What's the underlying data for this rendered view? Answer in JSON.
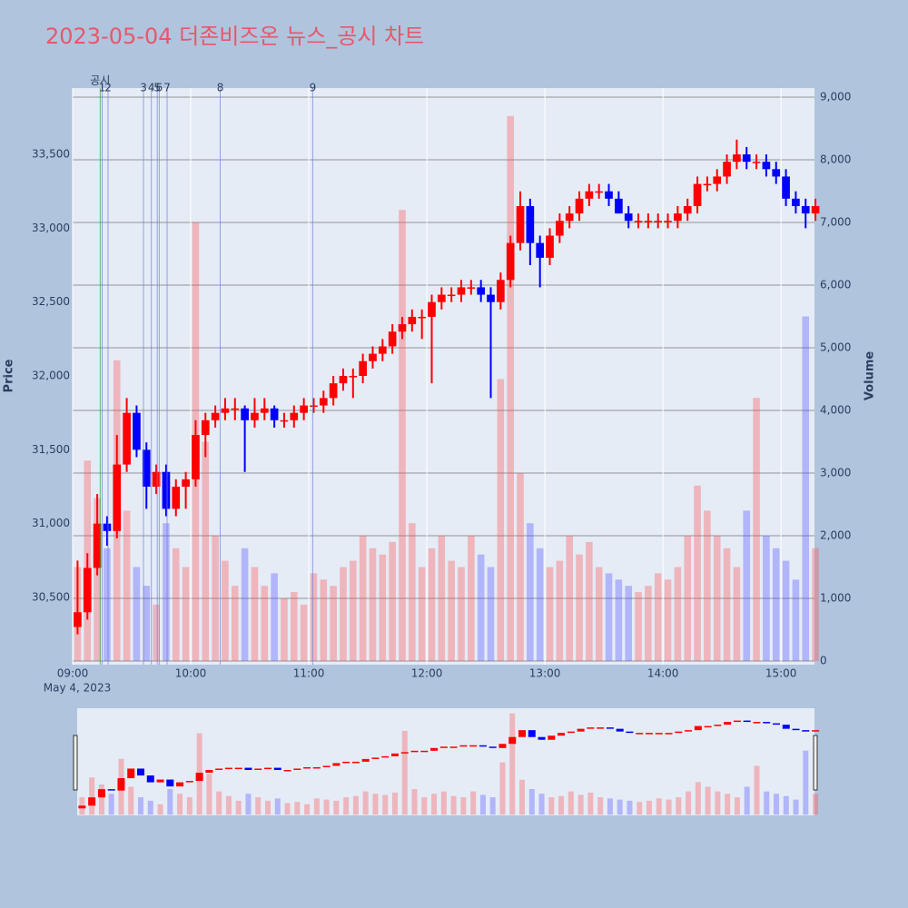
{
  "chart_data": {
    "type": "candlestick",
    "title": "2023-05-04 더존비즈온 뉴스_공시 차트",
    "y_label": "Price",
    "y2_label": "Volume",
    "x_date_label": "May 4, 2023",
    "up_color": "#ff0000",
    "down_color": "#0000ff",
    "volume_up_color": "rgba(255,80,80,0.35)",
    "volume_down_color": "rgba(80,80,255,0.35)",
    "x": [
      "09:00",
      "09:05",
      "09:10",
      "09:15",
      "09:20",
      "09:25",
      "09:30",
      "09:35",
      "09:40",
      "09:45",
      "09:50",
      "09:55",
      "10:00",
      "10:05",
      "10:10",
      "10:15",
      "10:20",
      "10:25",
      "10:30",
      "10:35",
      "10:40",
      "10:45",
      "10:50",
      "10:55",
      "11:00",
      "11:05",
      "11:10",
      "11:15",
      "11:20",
      "11:25",
      "11:30",
      "11:35",
      "11:40",
      "11:45",
      "11:50",
      "11:55",
      "12:00",
      "12:05",
      "12:10",
      "12:15",
      "12:20",
      "12:25",
      "12:30",
      "12:35",
      "12:40",
      "12:45",
      "12:50",
      "12:55",
      "13:00",
      "13:05",
      "13:10",
      "13:15",
      "13:20",
      "13:25",
      "13:30",
      "13:35",
      "13:40",
      "13:45",
      "13:50",
      "13:55",
      "14:00",
      "14:05",
      "14:10",
      "14:15",
      "14:20",
      "14:25",
      "14:30",
      "14:35",
      "14:40",
      "14:45",
      "14:50",
      "14:55",
      "15:00",
      "15:05",
      "15:10",
      "15:15"
    ],
    "open": [
      30300,
      30400,
      30700,
      31000,
      30950,
      31400,
      31750,
      31500,
      31250,
      31350,
      31100,
      31250,
      31300,
      31600,
      31700,
      31750,
      31780,
      31780,
      31700,
      31750,
      31780,
      31700,
      31700,
      31750,
      31800,
      31800,
      31850,
      31950,
      32000,
      32000,
      32100,
      32150,
      32200,
      32300,
      32350,
      32400,
      32400,
      32500,
      32550,
      32550,
      32600,
      32600,
      32550,
      32500,
      32650,
      32900,
      33150,
      32900,
      32800,
      32950,
      33050,
      33100,
      33200,
      33250,
      33250,
      33200,
      33100,
      33050,
      33050,
      33050,
      33050,
      33050,
      33100,
      33150,
      33300,
      33300,
      33350,
      33450,
      33500,
      33450,
      33450,
      33400,
      33350,
      33200,
      33150,
      33100
    ],
    "high": [
      30750,
      30800,
      31200,
      31050,
      31600,
      31850,
      31800,
      31550,
      31400,
      31400,
      31300,
      31350,
      31700,
      31750,
      31800,
      31850,
      31850,
      31800,
      31850,
      31850,
      31800,
      31750,
      31800,
      31850,
      31850,
      31900,
      32000,
      32050,
      32050,
      32150,
      32200,
      32250,
      32350,
      32400,
      32450,
      32450,
      32550,
      32600,
      32600,
      32650,
      32650,
      32650,
      32600,
      32700,
      32950,
      33250,
      33200,
      32950,
      33000,
      33100,
      33150,
      33250,
      33300,
      33300,
      33300,
      33250,
      33150,
      33100,
      33100,
      33100,
      33100,
      33150,
      33200,
      33350,
      33350,
      33400,
      33500,
      33600,
      33550,
      33500,
      33500,
      33450,
      33400,
      33250,
      33200,
      33200
    ],
    "low": [
      30250,
      30350,
      30650,
      30850,
      30900,
      31350,
      31450,
      31100,
      31200,
      31050,
      31050,
      31100,
      31250,
      31450,
      31650,
      31700,
      31700,
      31350,
      31650,
      31700,
      31650,
      31650,
      31650,
      31700,
      31750,
      31750,
      31800,
      31900,
      31850,
      31950,
      32050,
      32100,
      32150,
      32250,
      32300,
      32250,
      31950,
      32450,
      32500,
      32500,
      32550,
      32500,
      31850,
      32450,
      32600,
      32850,
      32750,
      32600,
      32750,
      32900,
      33000,
      33050,
      33150,
      33200,
      33150,
      33100,
      33000,
      33000,
      33000,
      33000,
      33000,
      33000,
      33050,
      33100,
      33250,
      33250,
      33300,
      33400,
      33400,
      33400,
      33350,
      33300,
      33150,
      33100,
      33000,
      33050
    ],
    "close": [
      30400,
      30700,
      31000,
      30950,
      31400,
      31750,
      31500,
      31250,
      31350,
      31100,
      31250,
      31300,
      31600,
      31700,
      31750,
      31780,
      31780,
      31700,
      31750,
      31780,
      31700,
      31700,
      31750,
      31800,
      31800,
      31850,
      31950,
      32000,
      32000,
      32100,
      32150,
      32200,
      32300,
      32350,
      32400,
      32400,
      32500,
      32550,
      32550,
      32600,
      32600,
      32550,
      32500,
      32650,
      32900,
      33150,
      32900,
      32800,
      32950,
      33050,
      33100,
      33200,
      33250,
      33250,
      33200,
      33100,
      33050,
      33050,
      33050,
      33050,
      33050,
      33100,
      33150,
      33300,
      33300,
      33350,
      33450,
      33500,
      33450,
      33450,
      33400,
      33350,
      33200,
      33150,
      33100,
      33150
    ],
    "volume": [
      1500,
      3200,
      2600,
      1800,
      4800,
      2400,
      1500,
      1200,
      900,
      2200,
      1800,
      1500,
      7000,
      3500,
      2000,
      1600,
      1200,
      1800,
      1500,
      1200,
      1400,
      1000,
      1100,
      900,
      1400,
      1300,
      1200,
      1500,
      1600,
      2000,
      1800,
      1700,
      1900,
      7200,
      2200,
      1500,
      1800,
      2000,
      1600,
      1500,
      2000,
      1700,
      1500,
      4500,
      8700,
      3000,
      2200,
      1800,
      1500,
      1600,
      2000,
      1700,
      1900,
      1500,
      1400,
      1300,
      1200,
      1100,
      1200,
      1400,
      1300,
      1500,
      2000,
      2800,
      2400,
      2000,
      1800,
      1500,
      2400,
      4200,
      2000,
      1800,
      1600,
      1300,
      5500,
      1800
    ],
    "xlim": [
      "09:00",
      "15:17"
    ],
    "xticks": [
      "09:00",
      "10:00",
      "11:00",
      "12:00",
      "13:00",
      "14:00",
      "15:00"
    ],
    "ylim": [
      30045,
      33949
    ],
    "yticks": [
      {
        "value": 30500,
        "label": "30,500"
      },
      {
        "value": 31000,
        "label": "31,000"
      },
      {
        "value": 31500,
        "label": "31,500"
      },
      {
        "value": 32000,
        "label": "32,000"
      },
      {
        "value": 32500,
        "label": "32,500"
      },
      {
        "value": 33000,
        "label": "33,000"
      },
      {
        "value": 33500,
        "label": "33,500"
      }
    ],
    "y2lim": [
      -58,
      9145
    ],
    "y2ticks": [
      0,
      {
        "value": 1000,
        "label": "1,000"
      },
      {
        "value": 2000,
        "label": "2,000"
      },
      {
        "value": 3000,
        "label": "3,000"
      },
      {
        "value": 4000,
        "label": "4,000"
      },
      {
        "value": 5000,
        "label": "5,000"
      },
      {
        "value": 6000,
        "label": "6,000"
      },
      {
        "value": 7000,
        "label": "7,000"
      },
      {
        "value": 8000,
        "label": "8,000"
      },
      {
        "value": 9000,
        "label": "9,000"
      }
    ],
    "annotations": [
      {
        "label": "공시",
        "x": "09:14",
        "color": "#2ca02c"
      },
      {
        "label": "1",
        "x": "09:15",
        "color": "#6f7fe0"
      },
      {
        "label": "2",
        "x": "09:18",
        "color": "#6f7fe0"
      },
      {
        "label": "3",
        "x": "09:36",
        "color": "#6f7fe0"
      },
      {
        "label": "4",
        "x": "09:40",
        "color": "#6f7fe0"
      },
      {
        "label": "5",
        "x": "09:43",
        "color": "#6f7fe0"
      },
      {
        "label": "6",
        "x": "09:44",
        "color": "#6f7fe0"
      },
      {
        "label": "7",
        "x": "09:48",
        "color": "#6f7fe0"
      },
      {
        "label": "8",
        "x": "10:15",
        "color": "#6f7fe0"
      },
      {
        "label": "9",
        "x": "11:02",
        "color": "#6f7fe0"
      }
    ]
  }
}
